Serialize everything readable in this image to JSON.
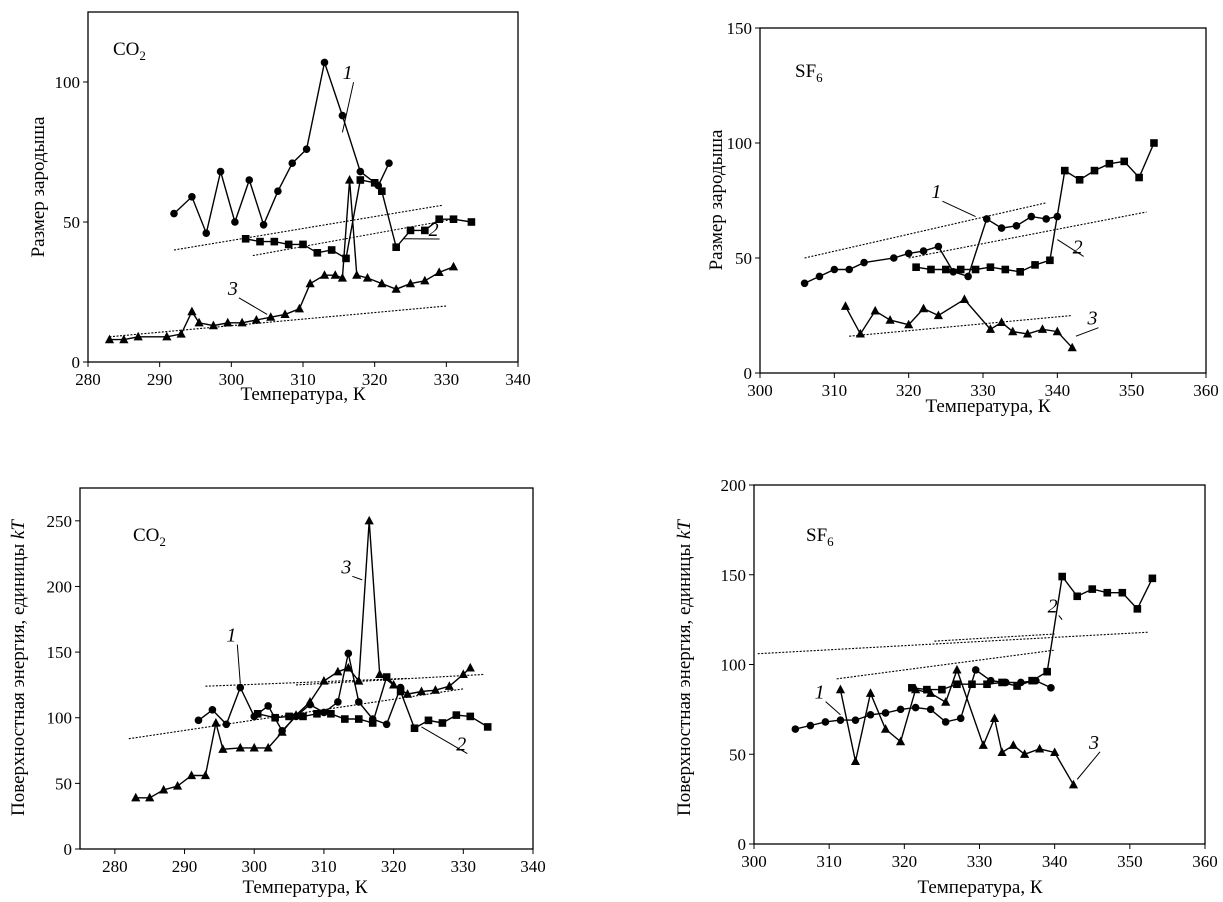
{
  "chart_data": [
    {
      "type": "scatter",
      "gas_label": "CO2",
      "gas_main": "CO",
      "gas_sub": "2",
      "xlabel": "Температура, К",
      "ylabel": "Размер зародыша",
      "xlim": [
        280,
        340
      ],
      "ylim": [
        0,
        125
      ],
      "xticks": [
        280,
        290,
        300,
        310,
        320,
        330,
        340
      ],
      "yticks": [
        0,
        50,
        100
      ],
      "series": [
        {
          "name": "1",
          "marker": "circle",
          "x": [
            292,
            294.5,
            296.5,
            298.5,
            300.5,
            302.5,
            304.5,
            306.5,
            308.5,
            310.5,
            313,
            315.5,
            318,
            320.5,
            322
          ],
          "y": [
            53,
            59,
            46,
            68,
            50,
            65,
            49,
            61,
            71,
            76,
            107,
            88,
            68,
            63,
            71
          ]
        },
        {
          "name": "2",
          "marker": "square",
          "x": [
            302,
            304,
            306,
            308,
            310,
            312,
            314,
            316,
            318,
            320,
            321,
            323,
            325,
            327,
            329,
            331,
            333.5
          ],
          "y": [
            44,
            43,
            43,
            42,
            42,
            39,
            40,
            37,
            65,
            64,
            61,
            41,
            47,
            47,
            51,
            51,
            50
          ]
        },
        {
          "name": "3",
          "marker": "triangle",
          "x": [
            283,
            285,
            287,
            291,
            293,
            294.5,
            295.5,
            297.5,
            299.5,
            301.5,
            303.5,
            305.5,
            307.5,
            309.5,
            311,
            313,
            314.5,
            315.5,
            316.5,
            317.5,
            319,
            321,
            323,
            325,
            327,
            329,
            331
          ],
          "y": [
            8,
            8,
            9,
            9,
            10,
            18,
            14,
            13,
            14,
            14,
            15,
            16,
            17,
            19,
            28,
            31,
            31,
            30,
            65,
            31,
            30,
            28,
            26,
            28,
            29,
            32,
            34
          ]
        }
      ],
      "trend_lines": [
        {
          "x": [
            292,
            329.5
          ],
          "y": [
            40,
            56
          ]
        },
        {
          "x": [
            303,
            331
          ],
          "y": [
            38,
            51
          ]
        },
        {
          "x": [
            283,
            330
          ],
          "y": [
            9,
            20
          ]
        }
      ],
      "label_positions": [
        {
          "label": "1",
          "x": 316.5,
          "y": 101,
          "tx": 315.5,
          "ty": 82
        },
        {
          "label": "2",
          "x": 328.5,
          "y": 45,
          "tx": 324,
          "ty": 44
        },
        {
          "label": "3",
          "x": 300.5,
          "y": 24,
          "tx": 305,
          "ty": 17
        }
      ]
    },
    {
      "type": "scatter",
      "gas_label": "SF6",
      "gas_main": "SF",
      "gas_sub": "6",
      "xlabel": "Температура, К",
      "ylabel": "Размер зародыша",
      "xlim": [
        300,
        360
      ],
      "ylim": [
        0,
        150
      ],
      "xticks": [
        300,
        310,
        320,
        330,
        340,
        350,
        360
      ],
      "yticks": [
        0,
        50,
        100,
        150
      ],
      "series": [
        {
          "name": "1",
          "marker": "circle",
          "x": [
            306,
            308,
            310,
            312,
            314,
            318,
            320,
            322,
            324,
            326,
            328,
            330.5,
            332.5,
            334.5,
            336.5,
            338.5,
            340
          ],
          "y": [
            39,
            42,
            45,
            45,
            48,
            50,
            52,
            53,
            55,
            44,
            42,
            67,
            63,
            64,
            68,
            67,
            68
          ]
        },
        {
          "name": "2",
          "marker": "square",
          "x": [
            321,
            323,
            325,
            327,
            329,
            331,
            333,
            335,
            337,
            339,
            341,
            343,
            345,
            347,
            349,
            351,
            353
          ],
          "y": [
            46,
            45,
            45,
            45,
            45,
            46,
            45,
            44,
            47,
            49,
            88,
            84,
            88,
            91,
            92,
            85,
            100
          ]
        },
        {
          "name": "3",
          "marker": "triangle",
          "x": [
            311.5,
            313.5,
            315.5,
            317.5,
            320,
            322,
            324,
            327.5,
            331,
            332.5,
            334,
            336,
            338,
            340,
            342
          ],
          "y": [
            29,
            17,
            27,
            23,
            21,
            28,
            25,
            32,
            19,
            22,
            18,
            17,
            19,
            18,
            11
          ]
        }
      ],
      "trend_lines": [
        {
          "x": [
            306,
            338.5
          ],
          "y": [
            50,
            74
          ]
        },
        {
          "x": [
            320,
            352
          ],
          "y": [
            50,
            70
          ]
        },
        {
          "x": [
            312,
            342
          ],
          "y": [
            16,
            25
          ]
        }
      ],
      "label_positions": [
        {
          "label": "1",
          "x": 324,
          "y": 76,
          "tx": 329,
          "ty": 68
        },
        {
          "label": "2",
          "x": 343,
          "y": 52,
          "tx": 340,
          "ty": 58
        },
        {
          "label": "3",
          "x": 345,
          "y": 21,
          "tx": 342.5,
          "ty": 16
        }
      ]
    },
    {
      "type": "scatter",
      "gas_label": "CO2",
      "gas_main": "CO",
      "gas_sub": "2",
      "xlabel": "Температура, К",
      "ylabel": "Поверхностная энергия, единицы kT",
      "xlim": [
        275,
        340
      ],
      "ylim": [
        0,
        275
      ],
      "xticks": [
        280,
        290,
        300,
        310,
        320,
        330,
        340
      ],
      "yticks": [
        0,
        50,
        100,
        150,
        200,
        250
      ],
      "series": [
        {
          "name": "1",
          "marker": "circle",
          "x": [
            292,
            294,
            296,
            298,
            300,
            302,
            304,
            306,
            308,
            310,
            312,
            313.5,
            315,
            317,
            319,
            321
          ],
          "y": [
            98,
            106,
            95,
            123,
            101,
            109,
            90,
            101,
            110,
            104,
            112,
            149,
            112,
            99,
            95,
            123
          ]
        },
        {
          "name": "2",
          "marker": "square",
          "x": [
            300.5,
            303,
            305,
            307,
            309,
            311,
            313,
            315,
            317,
            319,
            321,
            323,
            325,
            327,
            329,
            331,
            333.5
          ],
          "y": [
            103,
            100,
            101,
            101,
            103,
            103,
            99,
            99,
            96,
            131,
            120,
            92,
            98,
            96,
            102,
            101,
            93
          ]
        },
        {
          "name": "3",
          "marker": "triangle",
          "x": [
            283,
            285,
            287,
            289,
            291,
            293,
            294.5,
            295.5,
            298,
            300,
            302,
            304,
            306,
            308,
            310,
            312,
            313.5,
            315,
            316.5,
            318,
            320,
            322,
            324,
            326,
            328,
            330,
            331
          ],
          "y": [
            39,
            39,
            45,
            48,
            56,
            56,
            96,
            76,
            77,
            77,
            77,
            89,
            102,
            112,
            128,
            135,
            138,
            128,
            250,
            133,
            125,
            118,
            120,
            121,
            124,
            133,
            138
          ]
        }
      ],
      "trend_lines": [
        {
          "x": [
            293,
            322
          ],
          "y": [
            124,
            130
          ]
        },
        {
          "x": [
            282,
            330
          ],
          "y": [
            84,
            122
          ]
        },
        {
          "x": [
            306,
            333
          ],
          "y": [
            125,
            133
          ]
        }
      ],
      "label_positions": [
        {
          "label": "1",
          "x": 297,
          "y": 158,
          "tx": 298,
          "ty": 126
        },
        {
          "label": "2",
          "x": 330,
          "y": 75,
          "tx": 324,
          "ty": 93
        },
        {
          "label": "3",
          "x": 313.5,
          "y": 210,
          "tx": 315.5,
          "ty": 205
        }
      ]
    },
    {
      "type": "scatter",
      "gas_label": "SF6",
      "gas_main": "SF",
      "gas_sub": "6",
      "xlabel": "Температура, К",
      "ylabel": "Поверхностная энергия, единицы kT",
      "xlim": [
        300,
        360
      ],
      "ylim": [
        0,
        200
      ],
      "xticks": [
        300,
        310,
        320,
        330,
        340,
        350,
        360
      ],
      "yticks": [
        0,
        50,
        100,
        150,
        200
      ],
      "series": [
        {
          "name": "1",
          "marker": "circle",
          "x": [
            305.5,
            307.5,
            309.5,
            311.5,
            313.5,
            315.5,
            317.5,
            319.5,
            321.5,
            323.5,
            325.5,
            327.5,
            329.5,
            331.5,
            333.5,
            335.5,
            337.5,
            339.5
          ],
          "y": [
            64,
            66,
            68,
            69,
            69,
            72,
            73,
            75,
            76,
            75,
            68,
            70,
            97,
            91,
            90,
            90,
            91,
            87
          ]
        },
        {
          "name": "2",
          "marker": "square",
          "x": [
            321,
            323,
            325,
            327,
            329,
            331,
            333,
            335,
            337,
            339,
            341,
            343,
            345,
            347,
            349,
            351,
            353
          ],
          "y": [
            87,
            86,
            86,
            89,
            89,
            89,
            90,
            88,
            91,
            96,
            149,
            138,
            142,
            140,
            140,
            131,
            148
          ]
        },
        {
          "name": "3",
          "marker": "triangle",
          "x": [
            311.5,
            313.5,
            315.5,
            317.5,
            319.5,
            321.5,
            323.5,
            325.5,
            327,
            330.5,
            332,
            333,
            334.5,
            336,
            338,
            340,
            342.5
          ],
          "y": [
            86,
            46,
            84,
            64,
            57,
            86,
            84,
            79,
            97,
            55,
            70,
            51,
            55,
            50,
            53,
            51,
            33
          ]
        }
      ],
      "trend_lines": [
        {
          "x": [
            300.5,
            352.5
          ],
          "y": [
            106,
            118
          ]
        },
        {
          "x": [
            311,
            340
          ],
          "y": [
            92,
            108
          ]
        },
        {
          "x": [
            324,
            340
          ],
          "y": [
            113,
            117
          ]
        }
      ],
      "label_positions": [
        {
          "label": "1",
          "x": 309,
          "y": 81,
          "tx": 311.5,
          "ty": 72
        },
        {
          "label": "2",
          "x": 340,
          "y": 129,
          "tx": 341,
          "ty": 125
        },
        {
          "label": "3",
          "x": 345.5,
          "y": 53,
          "tx": 343,
          "ty": 36
        }
      ]
    }
  ]
}
